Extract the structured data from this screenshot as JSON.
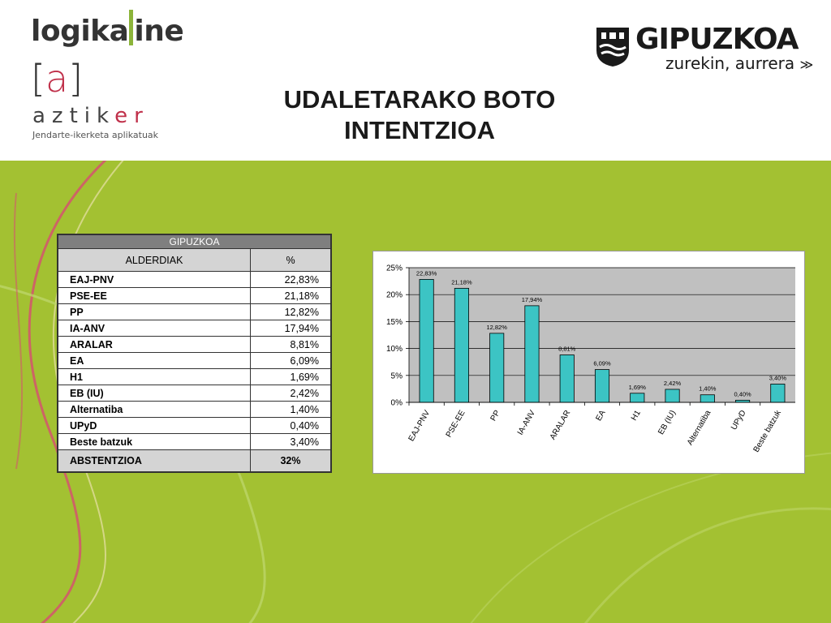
{
  "header": {
    "logo_logikaline_left": "logika",
    "logo_logikaline_right": "ine",
    "logo_aztiker_mark_open": "[",
    "logo_aztiker_mark_a": "a",
    "logo_aztiker_mark_close": "]",
    "logo_aztiker_left": "aztik",
    "logo_aztiker_right": "er",
    "logo_aztiker_sub": "Jendarte-ikerketa aplikatuak",
    "gipuzkoa_name": "GIPUZKOA",
    "gipuzkoa_slogan": "zurekin, aurrera",
    "title_line1": "UDALETARAKO BOTO",
    "title_line2": "INTENTZIOA"
  },
  "colors": {
    "background_green": "#a3c132",
    "bar_fill": "#3cc4c4",
    "plot_bg": "#c0c0c0",
    "accent_red": "#c0304a"
  },
  "table": {
    "region": "GIPUZKOA",
    "col_party": "ALDERDIAK",
    "col_pct": "%",
    "rows": [
      {
        "party": "EAJ-PNV",
        "pct": "22,83%"
      },
      {
        "party": "PSE-EE",
        "pct": "21,18%"
      },
      {
        "party": "PP",
        "pct": "12,82%"
      },
      {
        "party": "IA-ANV",
        "pct": "17,94%"
      },
      {
        "party": "ARALAR",
        "pct": "8,81%"
      },
      {
        "party": "EA",
        "pct": "6,09%"
      },
      {
        "party": "H1",
        "pct": "1,69%"
      },
      {
        "party": "EB (IU)",
        "pct": "2,42%"
      },
      {
        "party": "Alternatiba",
        "pct": "1,40%"
      },
      {
        "party": "UPyD",
        "pct": "0,40%"
      },
      {
        "party": "Beste batzuk",
        "pct": "3,40%"
      }
    ],
    "abstention_label": "ABSTENTZIOA",
    "abstention_value": "32%"
  },
  "chart_data": {
    "type": "bar",
    "categories": [
      "EAJ-PNV",
      "PSE-EE",
      "PP",
      "IA-ANV",
      "ARALAR",
      "EA",
      "H1",
      "EB (IU)",
      "Alternatiba",
      "UPyD",
      "Beste batzuk"
    ],
    "values": [
      22.83,
      21.18,
      12.82,
      17.94,
      8.81,
      6.09,
      1.69,
      2.42,
      1.4,
      0.4,
      3.4
    ],
    "data_labels": [
      "22,83%",
      "21,18%",
      "12,82%",
      "17,94%",
      "8,81%",
      "6,09%",
      "1,69%",
      "2,42%",
      "1,40%",
      "0,40%",
      "3,40%"
    ],
    "yticks": [
      "0%",
      "5%",
      "10%",
      "15%",
      "20%",
      "25%"
    ],
    "ylim": [
      0,
      25
    ],
    "grid": true,
    "legend": "none",
    "title": "",
    "xlabel": "",
    "ylabel": ""
  }
}
